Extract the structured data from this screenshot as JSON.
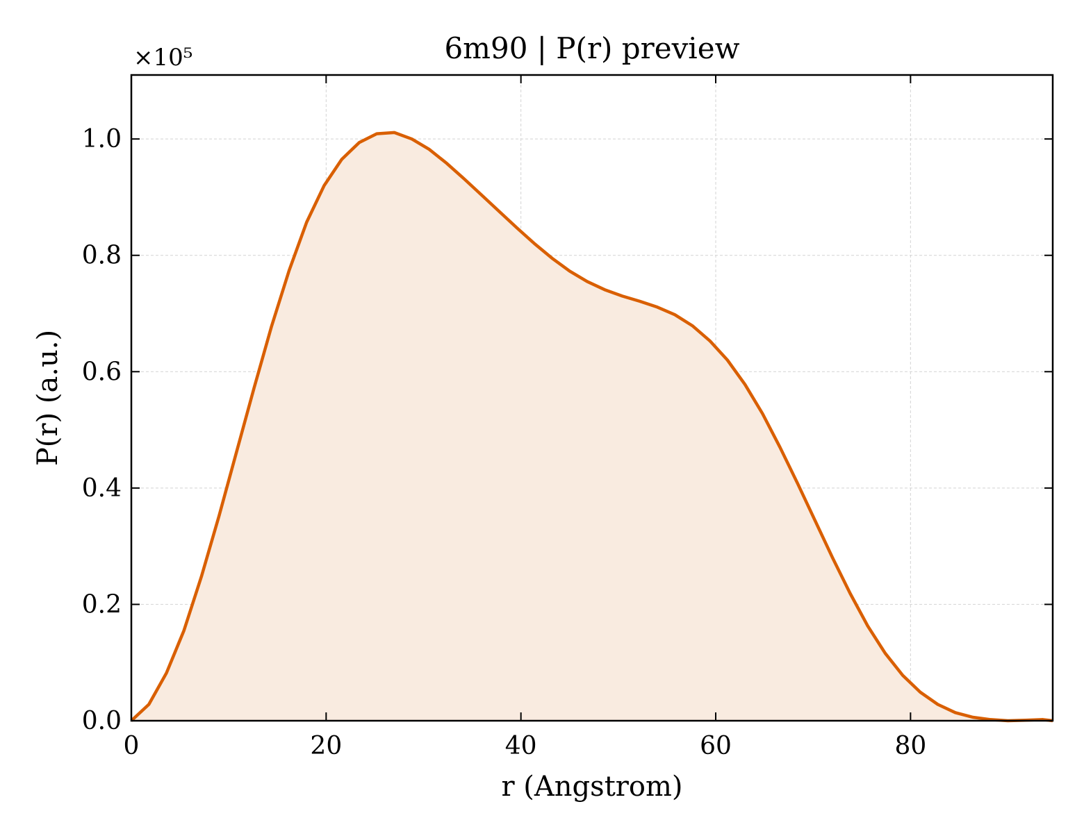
{
  "chart_data": {
    "type": "area",
    "title": "6m90 | P(r) preview",
    "xlabel": "r (Angstrom)",
    "ylabel": "P(r) (a.u.)",
    "y_multiplier_label": "×10⁵",
    "y_scale_factor": 100000,
    "xlim": [
      0,
      94.6
    ],
    "ylim": [
      0,
      111000
    ],
    "x_ticks": [
      0,
      20,
      40,
      60,
      80
    ],
    "x_tick_labels": [
      "0",
      "20",
      "40",
      "60",
      "80"
    ],
    "y_ticks": [
      0,
      20000,
      40000,
      60000,
      80000,
      100000
    ],
    "y_tick_labels": [
      "0.0",
      "0.2",
      "0.4",
      "0.6",
      "0.8",
      "1.0"
    ],
    "grid": true,
    "legend": "none",
    "colors": {
      "line": "#d95f02",
      "fill": "#f9ebe0",
      "grid": "#d3d3d3",
      "axes": "#000000"
    },
    "x": [
      0,
      1.8,
      3.6,
      5.4,
      7.2,
      9.0,
      10.8,
      12.6,
      14.4,
      16.2,
      18.0,
      19.8,
      21.6,
      23.4,
      25.2,
      27.0,
      28.8,
      30.6,
      32.4,
      34.2,
      36.0,
      37.8,
      39.6,
      41.4,
      43.2,
      45.0,
      46.8,
      48.6,
      50.4,
      52.2,
      54.0,
      55.8,
      57.6,
      59.4,
      61.2,
      63.0,
      64.8,
      66.6,
      68.4,
      70.2,
      72.0,
      73.8,
      75.6,
      77.4,
      79.2,
      81.0,
      82.8,
      84.6,
      86.4,
      88.2,
      90.0,
      91.8,
      93.6,
      94.6
    ],
    "y": [
      0,
      2800,
      8200,
      15500,
      24800,
      35200,
      46200,
      57200,
      67800,
      77400,
      85700,
      92000,
      96500,
      99400,
      100900,
      101100,
      100000,
      98200,
      95800,
      93100,
      90300,
      87500,
      84700,
      82000,
      79500,
      77300,
      75500,
      74100,
      73000,
      72100,
      71100,
      69800,
      67900,
      65300,
      62000,
      57800,
      52800,
      47000,
      40800,
      34400,
      28000,
      21900,
      16300,
      11600,
      7800,
      4900,
      2800,
      1400,
      600,
      200,
      0,
      100,
      200,
      0
    ]
  }
}
